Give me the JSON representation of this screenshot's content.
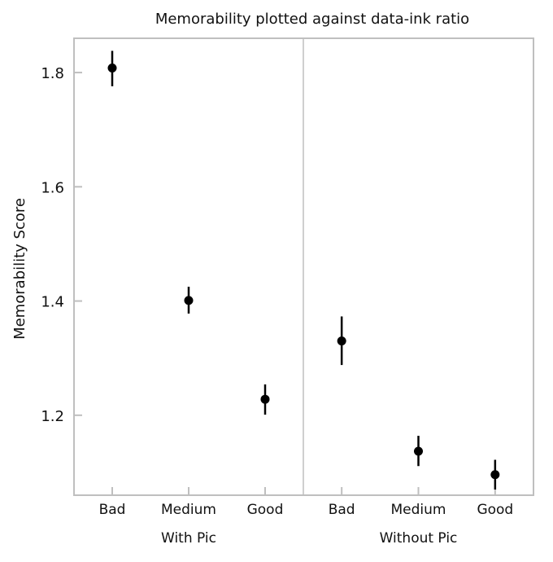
{
  "chart_data": {
    "type": "scatter",
    "title": "Memorability plotted against data-ink ratio",
    "xlabel": "",
    "ylabel": "Memorability Score",
    "ylim": [
      1.06,
      1.86
    ],
    "yticks": [
      "1.2",
      "1.4",
      "1.6",
      "1.8"
    ],
    "grid": false,
    "legend": "none",
    "panels": [
      {
        "name": "With Pic",
        "categories": [
          "Bad",
          "Medium",
          "Good"
        ],
        "points": [
          {
            "category": "Bad",
            "value": 1.808,
            "low": 1.776,
            "high": 1.838
          },
          {
            "category": "Medium",
            "value": 1.401,
            "low": 1.378,
            "high": 1.425
          },
          {
            "category": "Good",
            "value": 1.228,
            "low": 1.201,
            "high": 1.254
          }
        ]
      },
      {
        "name": "Without Pic",
        "categories": [
          "Bad",
          "Medium",
          "Good"
        ],
        "points": [
          {
            "category": "Bad",
            "value": 1.33,
            "low": 1.288,
            "high": 1.373
          },
          {
            "category": "Medium",
            "value": 1.137,
            "low": 1.111,
            "high": 1.164
          },
          {
            "category": "Good",
            "value": 1.096,
            "low": 1.07,
            "high": 1.122
          }
        ]
      }
    ],
    "colors": {
      "point": "#000000",
      "frame": "#bfbfbf",
      "divider": "#bfbfbf"
    }
  }
}
